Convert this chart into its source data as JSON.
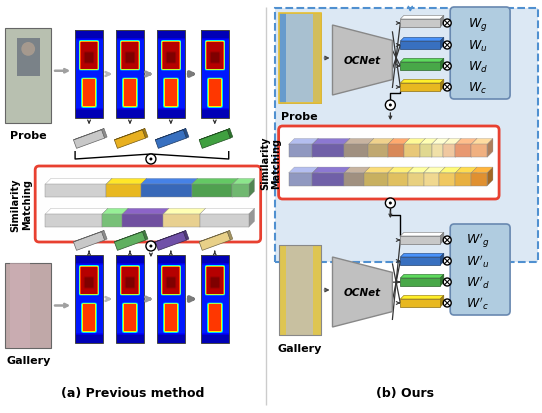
{
  "title_a": "(a) Previous method",
  "title_b": "(b) Ours",
  "bg_color": "#ffffff",
  "probe_label": "Probe",
  "gallery_label": "Gallery",
  "similarity_matching_label": "Similarity\nMatching",
  "ocnet_label": "OCNet",
  "weights_probe": [
    "$W_g$",
    "$W_u$",
    "$W_d$",
    "$W_c$"
  ],
  "weights_gallery": [
    "$W'_g$",
    "$W'_u$",
    "$W'_d$",
    "$W'_c$"
  ],
  "orange_box_color": "#e84030",
  "dashed_box_color": "#5090d0",
  "arrow_gray": "#909090",
  "arrow_dark": "#404040",
  "feat_colors_probe": [
    "#c8c8c8",
    "#e8b020",
    "#3870c0",
    "#40a040"
  ],
  "feat_colors_gallery": [
    "#c8c8c8",
    "#60b060",
    "#7050a8",
    "#e8d088"
  ],
  "feat_colors_ours": [
    "#c8c8c8",
    "#3870c0",
    "#40a040",
    "#e8b020"
  ],
  "bar_segs_probe": [
    [
      "#d0d0d0",
      0.3
    ],
    [
      "#e8b820",
      0.17
    ],
    [
      "#3868b8",
      0.25
    ],
    [
      "#50a050",
      0.2
    ],
    [
      "#70b870",
      0.08
    ]
  ],
  "bar_segs_gallery": [
    [
      "#d0d0d0",
      0.28
    ],
    [
      "#78c078",
      0.1
    ],
    [
      "#7050a0",
      0.2
    ],
    [
      "#e8d090",
      0.18
    ],
    [
      "#d0d0d0",
      0.24
    ]
  ],
  "bar_segs_ours_probe": [
    [
      "#9098c0",
      0.12
    ],
    [
      "#7060a8",
      0.16
    ],
    [
      "#a09080",
      0.12
    ],
    [
      "#c0a870",
      0.1
    ],
    [
      "#d88858",
      0.08
    ],
    [
      "#e8c878",
      0.08
    ],
    [
      "#e0d890",
      0.06
    ],
    [
      "#f0e0a8",
      0.06
    ],
    [
      "#f0c8a0",
      0.06
    ],
    [
      "#e89870",
      0.08
    ],
    [
      "#f0b080",
      0.08
    ]
  ],
  "bar_segs_ours_gallery": [
    [
      "#9098c0",
      0.12
    ],
    [
      "#7060a8",
      0.16
    ],
    [
      "#a09080",
      0.1
    ],
    [
      "#c8b060",
      0.12
    ],
    [
      "#e0c060",
      0.1
    ],
    [
      "#e8d080",
      0.08
    ],
    [
      "#f0d890",
      0.08
    ],
    [
      "#f0c860",
      0.08
    ],
    [
      "#e8b040",
      0.08
    ],
    [
      "#e09030",
      0.08
    ]
  ]
}
